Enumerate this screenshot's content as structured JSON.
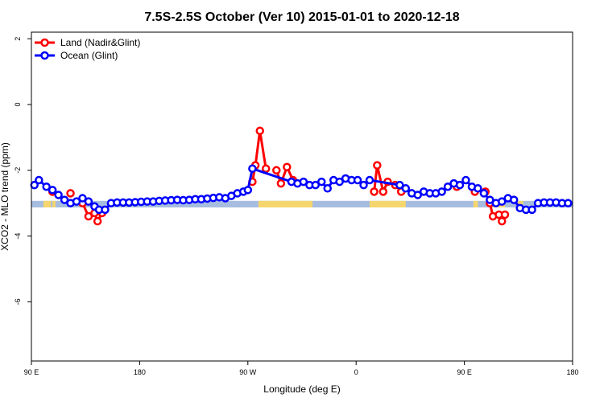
{
  "chart_data": {
    "type": "line",
    "title": "7.5S-2.5S October (Ver 10)   2015-01-01 to 2020-12-18",
    "xlabel": "Longitude (deg E)",
    "ylabel": "XCO2 - MLO trend (ppm)",
    "xlim": [
      90,
      450
    ],
    "ylim": [
      -7.8,
      2.2
    ],
    "x_ticks": [
      {
        "value": 90,
        "label": "90 E"
      },
      {
        "value": 162,
        "label": "180"
      },
      {
        "value": 234,
        "label": "90 W"
      },
      {
        "value": 306,
        "label": "0"
      },
      {
        "value": 378,
        "label": "90 E"
      },
      {
        "value": 450,
        "label": "180"
      }
    ],
    "y_ticks": [
      {
        "value": 2,
        "label": "2"
      },
      {
        "value": 0,
        "label": "0"
      },
      {
        "value": -2,
        "label": "-2"
      },
      {
        "value": -4,
        "label": "-4"
      },
      {
        "value": -6,
        "label": "-6"
      }
    ],
    "legend": {
      "position": "top-left"
    },
    "colors": {
      "land": "#ff0000",
      "ocean": "#0000ff",
      "land_band": "#f5d66e",
      "ocean_band": "#a6bde0"
    },
    "surface_band": {
      "y_top": -2.93,
      "y_bottom": -3.13,
      "land_segments": [
        [
          98,
          103
        ],
        [
          104,
          106
        ],
        [
          241,
          277
        ],
        [
          315,
          339
        ],
        [
          384,
          387
        ],
        [
          397,
          405
        ],
        [
          413,
          417
        ]
      ]
    },
    "series": [
      {
        "name": "Land (Nadir&Glint)",
        "color": "#ff0000",
        "segments": [
          [
            [
              104,
              -2.65
            ]
          ],
          [
            [
              116,
              -2.7
            ]
          ],
          [
            [
              124,
              -3.0
            ],
            [
              128,
              -3.4
            ],
            [
              132,
              -3.3
            ],
            [
              134,
              -3.55
            ],
            [
              137,
              -3.3
            ]
          ],
          [
            [
              237,
              -2.35
            ],
            [
              239,
              -1.85
            ],
            [
              242,
              -0.8
            ],
            [
              246,
              -1.95
            ]
          ],
          [
            [
              253,
              -2.0
            ],
            [
              256,
              -2.4
            ],
            [
              260,
              -1.9
            ],
            [
              264,
              -2.3
            ]
          ],
          [
            [
              318,
              -2.65
            ],
            [
              320,
              -1.85
            ],
            [
              324,
              -2.65
            ],
            [
              327,
              -2.35
            ],
            [
              332,
              -2.45
            ],
            [
              336,
              -2.65
            ]
          ],
          [
            [
              373,
              -2.5
            ]
          ],
          [
            [
              385,
              -2.65
            ]
          ],
          [
            [
              392,
              -2.65
            ]
          ],
          [
            [
              395,
              -3.0
            ],
            [
              397,
              -3.4
            ],
            [
              401,
              -3.35
            ],
            [
              403,
              -3.55
            ],
            [
              405,
              -3.35
            ]
          ]
        ]
      },
      {
        "name": "Ocean (Glint)",
        "color": "#0000ff",
        "x": [
          92,
          95,
          100,
          104,
          108,
          112,
          116,
          120,
          124,
          128,
          132,
          135,
          139,
          143,
          147,
          151,
          155,
          159,
          163,
          167,
          171,
          175,
          179,
          183,
          187,
          191,
          195,
          199,
          203,
          207,
          211,
          215,
          219,
          223,
          227,
          231,
          234,
          237,
          263,
          267,
          271,
          275,
          279,
          283,
          287,
          291,
          295,
          299,
          303,
          307,
          311,
          315,
          335,
          339,
          343,
          347,
          351,
          355,
          359,
          363,
          367,
          371,
          375,
          379,
          383,
          387,
          391,
          395,
          399,
          403,
          407,
          411,
          415,
          419,
          423,
          427,
          431,
          435,
          439,
          443,
          447
        ],
        "y": [
          -2.45,
          -2.3,
          -2.5,
          -2.6,
          -2.75,
          -2.9,
          -3.0,
          -2.95,
          -2.85,
          -2.95,
          -3.1,
          -3.2,
          -3.2,
          -3.0,
          -2.98,
          -2.98,
          -2.98,
          -2.97,
          -2.96,
          -2.95,
          -2.95,
          -2.93,
          -2.92,
          -2.91,
          -2.9,
          -2.91,
          -2.9,
          -2.88,
          -2.88,
          -2.86,
          -2.84,
          -2.82,
          -2.85,
          -2.78,
          -2.7,
          -2.65,
          -2.6,
          -1.95,
          -2.35,
          -2.4,
          -2.35,
          -2.45,
          -2.45,
          -2.35,
          -2.55,
          -2.3,
          -2.35,
          -2.25,
          -2.3,
          -2.3,
          -2.45,
          -2.3,
          -2.45,
          -2.55,
          -2.7,
          -2.75,
          -2.65,
          -2.7,
          -2.7,
          -2.65,
          -2.5,
          -2.4,
          -2.45,
          -2.3,
          -2.5,
          -2.55,
          -2.7,
          -2.9,
          -3.0,
          -2.95,
          -2.85,
          -2.9,
          -3.15,
          -3.2,
          -3.2,
          -3.0,
          -2.98,
          -2.98,
          -2.98,
          -3.0,
          -3.0
        ]
      }
    ]
  }
}
